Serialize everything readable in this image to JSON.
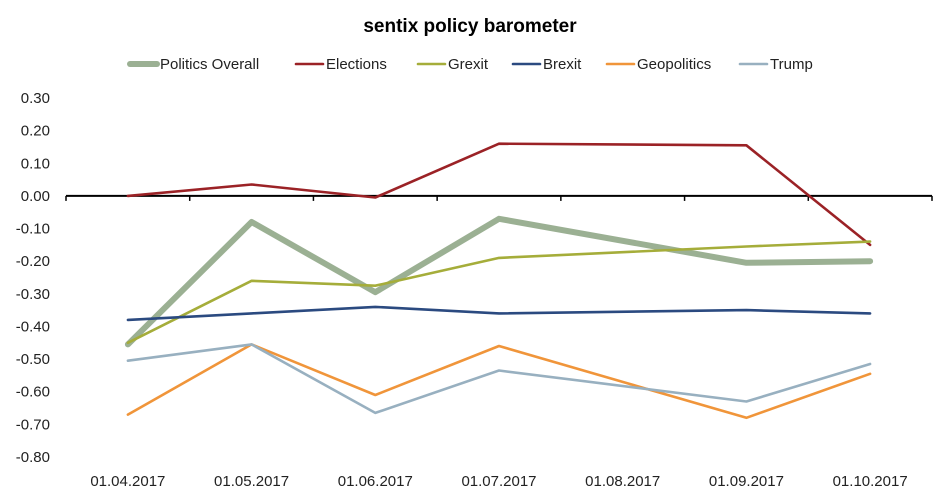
{
  "chart_data": {
    "type": "line",
    "title": "sentix policy barometer",
    "xlabel": "",
    "ylabel": "",
    "ylim": [
      -0.8,
      0.3
    ],
    "yticks": [
      "0.30",
      "0.20",
      "0.10",
      "0.00",
      "-0.10",
      "-0.20",
      "-0.30",
      "-0.40",
      "-0.50",
      "-0.60",
      "-0.70",
      "-0.80"
    ],
    "categories": [
      "01.04.2017",
      "01.05.2017",
      "01.06.2017",
      "01.07.2017",
      "01.08.2017",
      "01.09.2017",
      "01.10.2017"
    ],
    "legend_position": "top",
    "grid": false,
    "series": [
      {
        "name": "Politics Overall",
        "color": "#9bb093",
        "weight": "thick",
        "values": [
          -0.455,
          -0.08,
          -0.295,
          -0.07,
          null,
          -0.205,
          -0.2
        ]
      },
      {
        "name": "Elections",
        "color": "#9b2226",
        "weight": "normal",
        "values": [
          0.0,
          0.035,
          -0.005,
          0.16,
          null,
          0.155,
          -0.15
        ]
      },
      {
        "name": "Grexit",
        "color": "#a5ad3a",
        "weight": "normal",
        "values": [
          -0.45,
          -0.26,
          -0.275,
          -0.19,
          null,
          -0.155,
          -0.14
        ]
      },
      {
        "name": "Brexit",
        "color": "#2b4a80",
        "weight": "normal",
        "values": [
          -0.38,
          -0.36,
          -0.34,
          -0.36,
          null,
          -0.35,
          -0.36
        ]
      },
      {
        "name": "Geopolitics",
        "color": "#f0953a",
        "weight": "normal",
        "values": [
          -0.67,
          -0.455,
          -0.61,
          -0.46,
          null,
          -0.68,
          -0.545
        ]
      },
      {
        "name": "Trump",
        "color": "#98b0c0",
        "weight": "normal",
        "values": [
          -0.505,
          -0.455,
          -0.665,
          -0.535,
          null,
          -0.63,
          -0.515
        ]
      }
    ]
  }
}
